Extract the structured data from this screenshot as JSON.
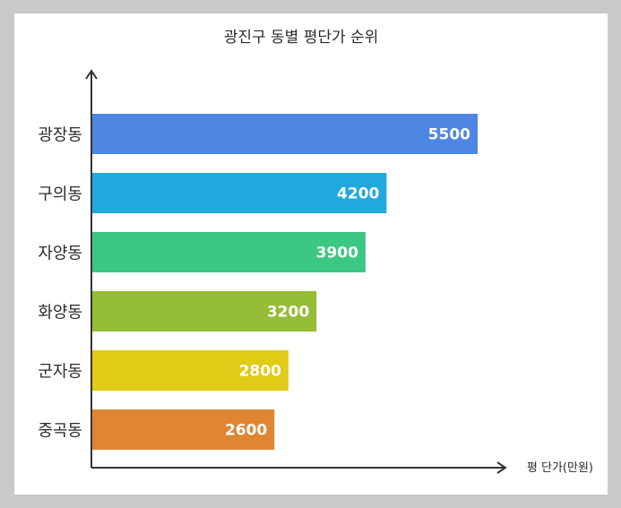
{
  "chart_data": {
    "type": "bar",
    "orientation": "horizontal",
    "title": "광진구 동별 평단가 순위",
    "xlabel": "평 단가(만원)",
    "ylabel": "",
    "categories": [
      "광장동",
      "구의동",
      "자양동",
      "화양동",
      "군자동",
      "중곡동"
    ],
    "values": [
      5500,
      4200,
      3900,
      3200,
      2800,
      2600
    ],
    "colors": [
      "#4e86e4",
      "#21a9dd",
      "#3cc784",
      "#95bd38",
      "#e0cb16",
      "#e08532"
    ],
    "xlim": [
      0,
      5500
    ],
    "grid": false,
    "legend": "none",
    "data_labels": true
  }
}
